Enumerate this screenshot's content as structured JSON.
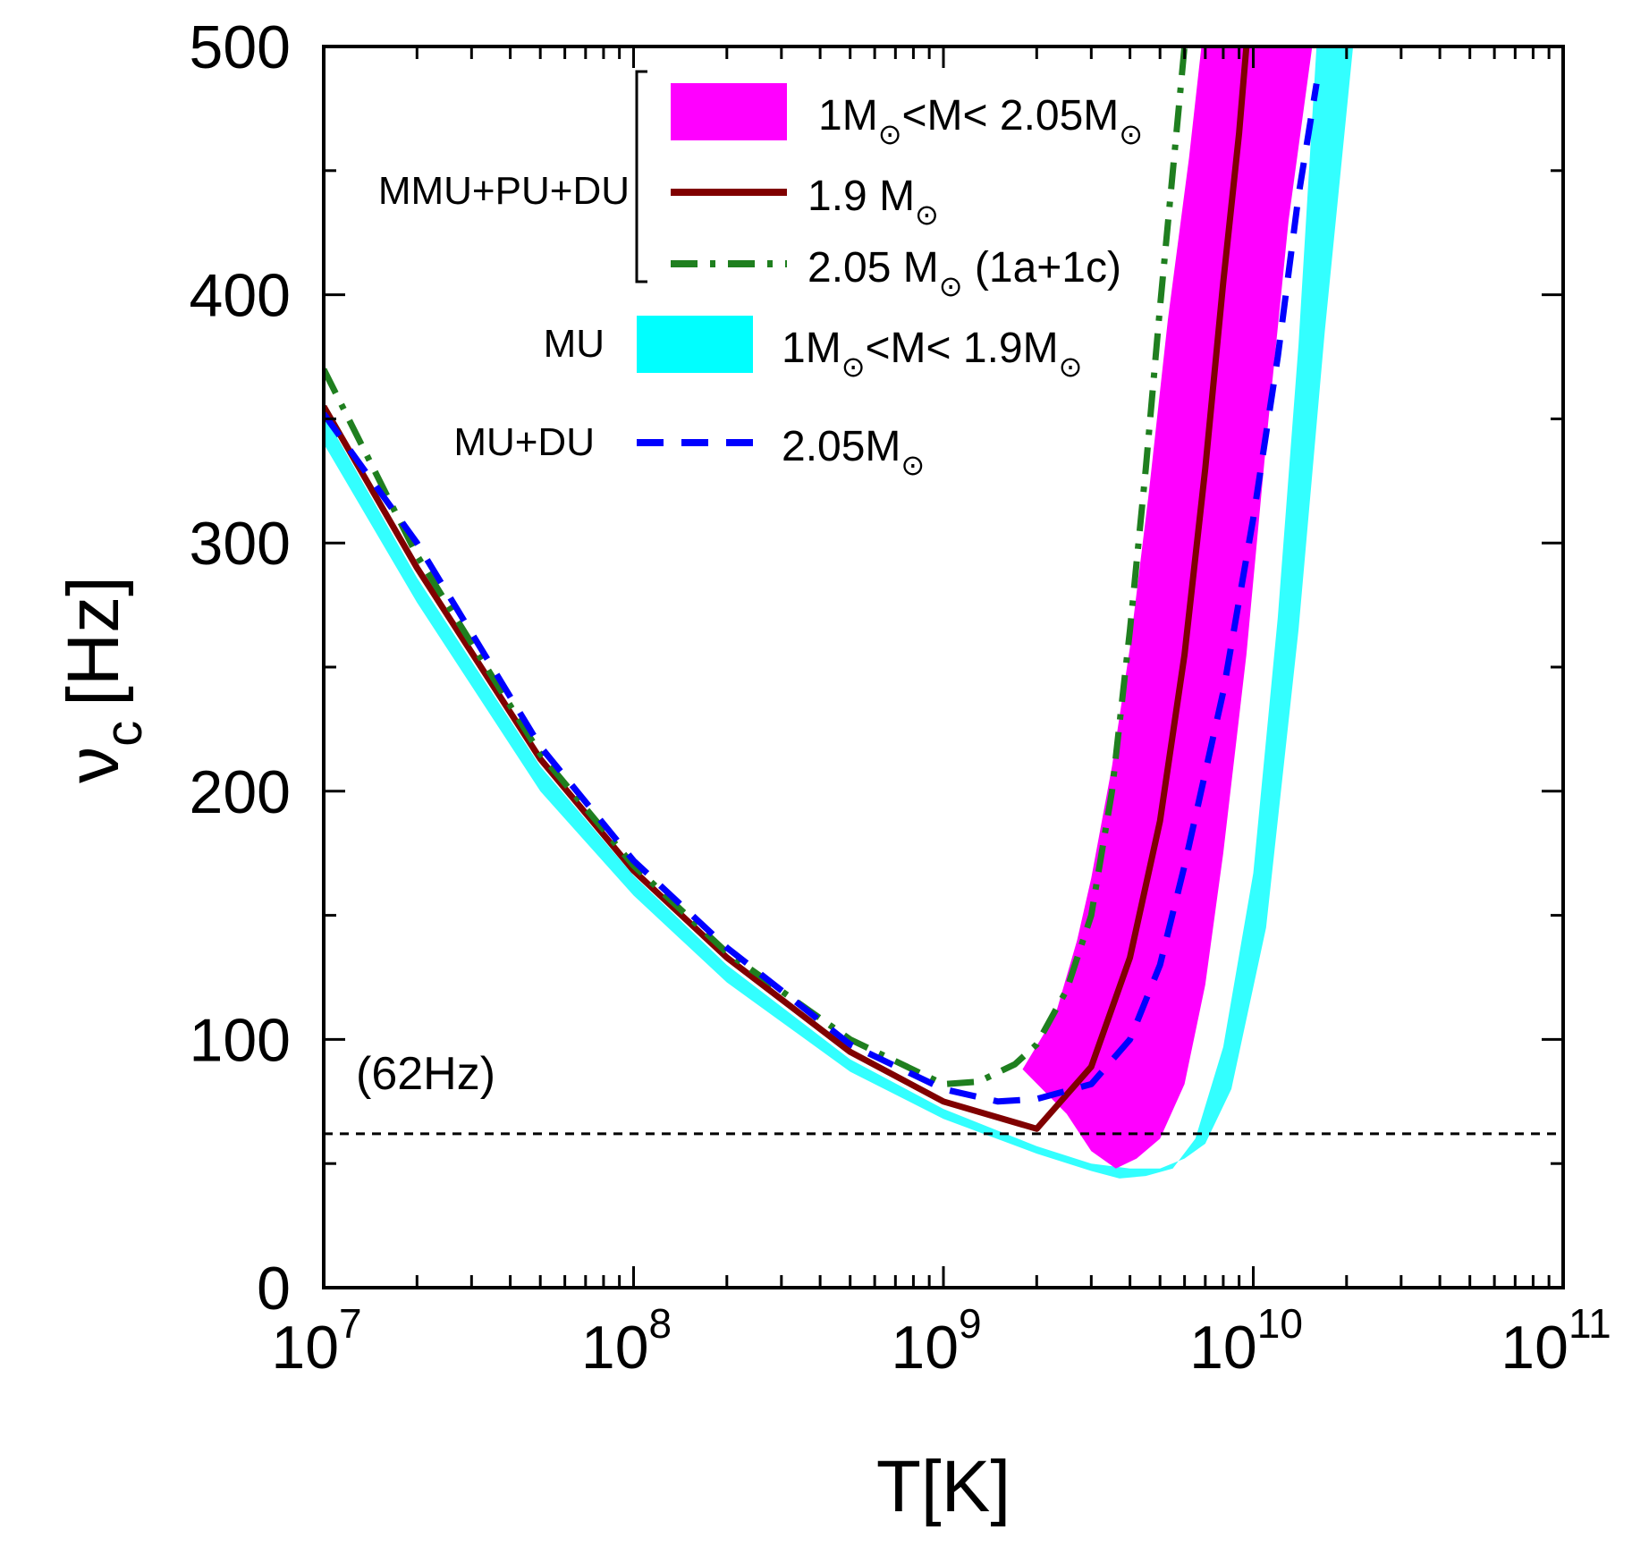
{
  "chart_data": {
    "type": "line",
    "xscale": "log",
    "xlabel": "T[K]",
    "ylabel": "ν_c [Hz]",
    "ylabel_symbol": "ν",
    "ylabel_subscript": "c",
    "ylabel_unit": "[Hz]",
    "xlim": [
      10000000,
      100000000000
    ],
    "ylim": [
      0,
      500
    ],
    "x_ticks": [
      {
        "value": 10000000,
        "base": "10",
        "exp": "7"
      },
      {
        "value": 100000000,
        "base": "10",
        "exp": "8"
      },
      {
        "value": 1000000000,
        "base": "10",
        "exp": "9"
      },
      {
        "value": 10000000000,
        "base": "10",
        "exp": "10"
      },
      {
        "value": 100000000000,
        "base": "10",
        "exp": "11"
      }
    ],
    "y_ticks": [
      {
        "value": 0,
        "label": "0"
      },
      {
        "value": 100,
        "label": "100"
      },
      {
        "value": 200,
        "label": "200"
      },
      {
        "value": 300,
        "label": "300"
      },
      {
        "value": 400,
        "label": "400"
      },
      {
        "value": 500,
        "label": "500"
      }
    ],
    "reference_line": {
      "y": 62,
      "label": "(62Hz)",
      "color": "#000000"
    },
    "bands": [
      {
        "name": "MU 1M⊙<M< 1.9M⊙",
        "color": "#00ffff",
        "opacity": 0.8,
        "lower": [
          [
            10000000.0,
            340
          ],
          [
            20000000.0,
            276
          ],
          [
            50000000.0,
            200
          ],
          [
            100000000.0,
            158
          ],
          [
            200000000.0,
            123
          ],
          [
            500000000.0,
            87
          ],
          [
            1000000000.0,
            68
          ],
          [
            2000000000.0,
            54
          ],
          [
            3000000000.0,
            47
          ],
          [
            3700000000.0,
            44
          ],
          [
            4500000000.0,
            45
          ],
          [
            5500000000.0,
            48
          ],
          [
            6500000000.0,
            60
          ],
          [
            8000000000.0,
            97
          ],
          [
            10000000000.0,
            167
          ],
          [
            12000000000.0,
            270
          ],
          [
            14000000000.0,
            380
          ],
          [
            16000000000.0,
            500
          ]
        ],
        "upper": [
          [
            10000000.0,
            352
          ],
          [
            20000000.0,
            286
          ],
          [
            50000000.0,
            210
          ],
          [
            100000000.0,
            166
          ],
          [
            200000000.0,
            130
          ],
          [
            500000000.0,
            92
          ],
          [
            1000000000.0,
            72
          ],
          [
            2000000000.0,
            57
          ],
          [
            3000000000.0,
            50
          ],
          [
            4000000000.0,
            48
          ],
          [
            5000000000.0,
            48
          ],
          [
            6000000000.0,
            52
          ],
          [
            7000000000.0,
            58
          ],
          [
            8500000000.0,
            80
          ],
          [
            11000000000.0,
            145
          ],
          [
            14000000000.0,
            265
          ],
          [
            17000000000.0,
            385
          ],
          [
            21000000000.0,
            500
          ]
        ]
      },
      {
        "name": "MMU+PU+DU 1M⊙<M< 2.05M⊙",
        "color": "#ff00ff",
        "opacity": 1,
        "lower": [
          [
            1800000000.0,
            88
          ],
          [
            2500000000.0,
            70
          ],
          [
            3000000000.0,
            55
          ],
          [
            3600000000.0,
            48
          ],
          [
            4200000000.0,
            52
          ],
          [
            5000000000.0,
            60
          ],
          [
            6000000000.0,
            82
          ],
          [
            7000000000.0,
            122
          ],
          [
            8000000000.0,
            175
          ],
          [
            9500000000.0,
            255
          ],
          [
            11000000000.0,
            340
          ],
          [
            13000000000.0,
            430
          ],
          [
            15500000000.0,
            500
          ]
        ],
        "upper": [
          [
            1800000000.0,
            88
          ],
          [
            2300000000.0,
            110
          ],
          [
            2700000000.0,
            140
          ],
          [
            3000000000.0,
            165
          ],
          [
            3500000000.0,
            210
          ],
          [
            4000000000.0,
            258
          ],
          [
            4600000000.0,
            320
          ],
          [
            5300000000.0,
            390
          ],
          [
            6200000000.0,
            455
          ],
          [
            6800000000.0,
            500
          ]
        ]
      }
    ],
    "series": [
      {
        "name": "1.9 M⊙",
        "color": "#800000",
        "dash": "solid",
        "width": 7,
        "points": [
          [
            10000000.0,
            355
          ],
          [
            20000000.0,
            290
          ],
          [
            50000000.0,
            213
          ],
          [
            100000000.0,
            168
          ],
          [
            200000000.0,
            133
          ],
          [
            500000000.0,
            95
          ],
          [
            1000000000.0,
            75
          ],
          [
            2000000000.0,
            64
          ],
          [
            3000000000.0,
            89
          ],
          [
            4000000000.0,
            133
          ],
          [
            5000000000.0,
            188
          ],
          [
            6000000000.0,
            255
          ],
          [
            7000000000.0,
            330
          ],
          [
            8000000000.0,
            405
          ],
          [
            9000000000.0,
            465
          ],
          [
            9500000000.0,
            500
          ]
        ]
      },
      {
        "name": "2.05 M⊙ (1a+1c)",
        "color": "#1f7f1f",
        "dash": "dashdot",
        "width": 7,
        "points": [
          [
            10000000.0,
            370
          ],
          [
            20000000.0,
            295
          ],
          [
            50000000.0,
            215
          ],
          [
            100000000.0,
            170
          ],
          [
            200000000.0,
            135
          ],
          [
            500000000.0,
            100
          ],
          [
            1000000000.0,
            82
          ],
          [
            1300000000.0,
            83
          ],
          [
            1700000000.0,
            90
          ],
          [
            2000000000.0,
            98
          ],
          [
            2500000000.0,
            120
          ],
          [
            3000000000.0,
            150
          ],
          [
            3500000000.0,
            200
          ],
          [
            4000000000.0,
            265
          ],
          [
            4500000000.0,
            330
          ],
          [
            5000000000.0,
            395
          ],
          [
            5600000000.0,
            460
          ],
          [
            6000000000.0,
            500
          ]
        ]
      },
      {
        "name": "2.05M⊙",
        "color": "#0000ff",
        "dash": "dashed",
        "width": 7,
        "points": [
          [
            10000000.0,
            352
          ],
          [
            20000000.0,
            300
          ],
          [
            50000000.0,
            218
          ],
          [
            100000000.0,
            172
          ],
          [
            200000000.0,
            137
          ],
          [
            500000000.0,
            98
          ],
          [
            1000000000.0,
            80
          ],
          [
            1500000000.0,
            75
          ],
          [
            2000000000.0,
            76
          ],
          [
            3000000000.0,
            82
          ],
          [
            4000000000.0,
            100
          ],
          [
            5000000000.0,
            130
          ],
          [
            6000000000.0,
            170
          ],
          [
            8000000000.0,
            240
          ],
          [
            10000000000.0,
            310
          ],
          [
            12000000000.0,
            375
          ],
          [
            14000000000.0,
            440
          ],
          [
            16000000000.0,
            485
          ]
        ]
      }
    ],
    "legend": {
      "bracket_label": "MMU+PU+DU",
      "entries": [
        {
          "group": "MMU+PU+DU",
          "kind": "band",
          "color": "#ff00ff",
          "text": "1M",
          "sub": "⊙",
          "text2": "<M< 2.05M",
          "sub2": "⊙",
          "text3": ""
        },
        {
          "group": "MMU+PU+DU",
          "kind": "line",
          "color": "#800000",
          "dash": "solid",
          "text": "1.9 M",
          "sub": "⊙",
          "text2": "",
          "sub2": "",
          "text3": ""
        },
        {
          "group": "MMU+PU+DU",
          "kind": "line",
          "color": "#1f7f1f",
          "dash": "dashdot",
          "text": "2.05 M",
          "sub": "⊙",
          "text2": "",
          "sub2": "",
          "text3": " (1a+1c)"
        },
        {
          "group": "MU",
          "label": "MU",
          "kind": "band",
          "color": "#00ffff",
          "text": "1M",
          "sub": "⊙",
          "text2": "<M< 1.9M",
          "sub2": "⊙",
          "text3": ""
        },
        {
          "group": "MU+DU",
          "label": "MU+DU",
          "kind": "line",
          "color": "#0000ff",
          "dash": "dashed",
          "text": "2.05M",
          "sub": "⊙",
          "text2": "",
          "sub2": "",
          "text3": ""
        }
      ]
    }
  }
}
